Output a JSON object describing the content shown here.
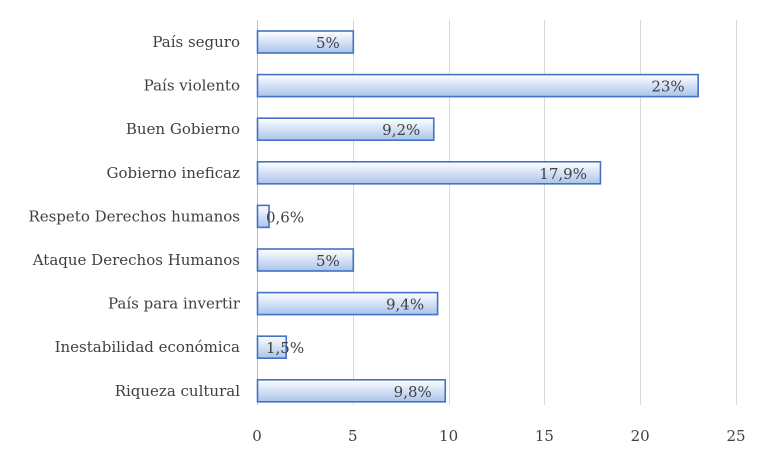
{
  "chart_data": {
    "type": "bar",
    "orientation": "horizontal",
    "categories": [
      "País seguro",
      "País violento",
      "Buen Gobierno",
      "Gobierno ineficaz",
      "Respeto Derechos humanos",
      "Ataque Derechos Humanos",
      "País para invertir",
      "Inestabilidad económica",
      "Riqueza cultural"
    ],
    "values": [
      5,
      23,
      9.2,
      17.9,
      0.6,
      5,
      9.4,
      1.5,
      9.8
    ],
    "data_labels": [
      "5%",
      "23%",
      "9,2%",
      "17,9%",
      "0,6%",
      "5%",
      "9,4%",
      "1,5%",
      "9,8%"
    ],
    "xlim": [
      0,
      25
    ],
    "xticks": [
      0,
      5,
      10,
      15,
      20,
      25
    ],
    "title": "",
    "xlabel": "",
    "ylabel": "",
    "grid": "vertical",
    "legend": "none",
    "bar_fill_top": "#ffffff",
    "bar_fill_bottom": "#a9c4ec",
    "bar_stroke": "#4472c4"
  }
}
